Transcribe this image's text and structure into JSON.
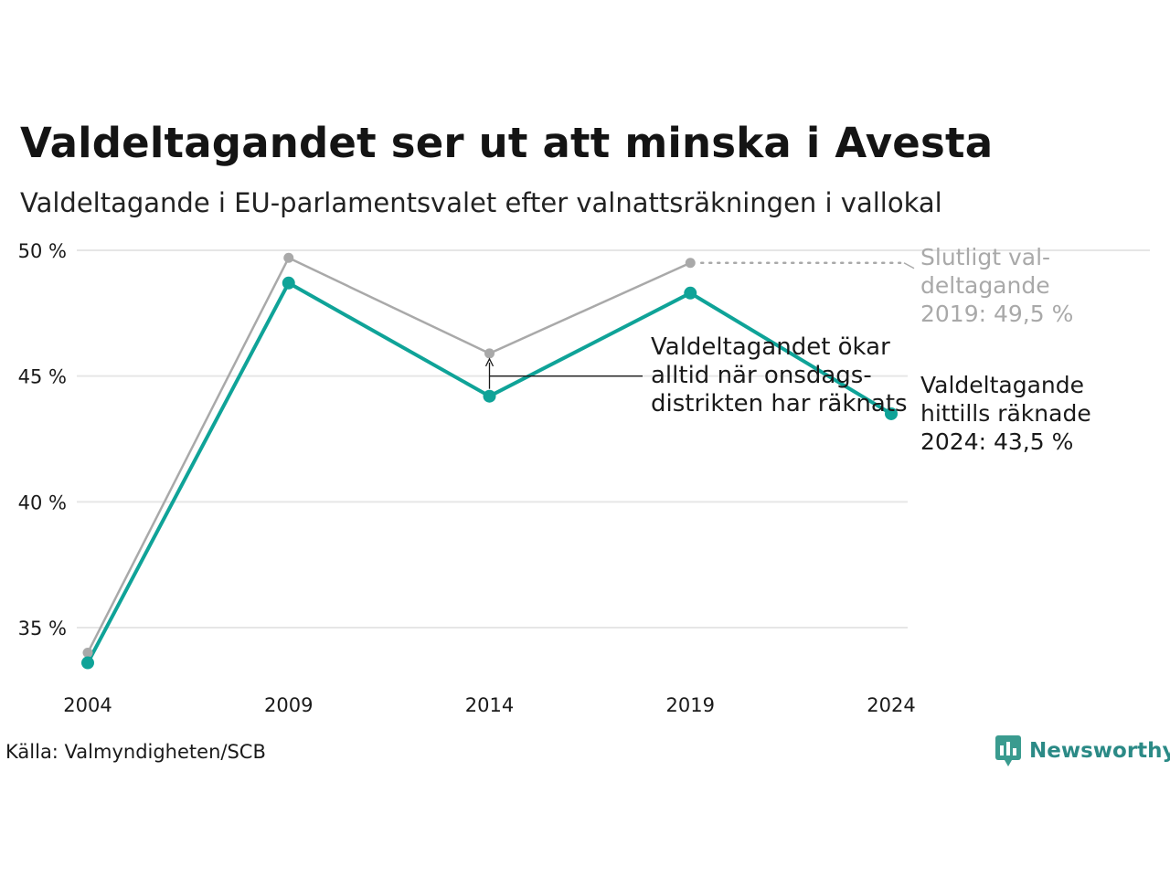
{
  "title": "Valdeltagandet ser ut att minska i Avesta",
  "subtitle": "Valdeltagande i EU-parlamentsvalet efter valnattsräkningen i vallokal",
  "source": "Källa: Valmyndigheten/SCB",
  "brand": "Newsworthy",
  "colors": {
    "preliminary": "#0fa398",
    "final": "#a9a9a9",
    "grid": "#e6e6e6",
    "brand": "#2b8a86"
  },
  "chart_data": {
    "type": "line",
    "x": [
      2004,
      2009,
      2014,
      2019,
      2024
    ],
    "ylim": [
      33,
      50.5
    ],
    "yticks": [
      35,
      40,
      45,
      50
    ],
    "ytick_labels": [
      "35 %",
      "40 %",
      "45 %",
      "50 %"
    ],
    "xtick_labels": [
      "2004",
      "2009",
      "2014",
      "2019",
      "2024"
    ],
    "grid": true,
    "series": [
      {
        "key": "final",
        "values": [
          34.0,
          49.7,
          45.9,
          49.5,
          null
        ]
      },
      {
        "key": "preliminary",
        "values": [
          33.6,
          48.7,
          44.2,
          48.3,
          43.5
        ]
      }
    ],
    "annotations": {
      "final_label": [
        "Slutligt val-",
        "deltagande",
        "2019: 49,5 %"
      ],
      "current_label": [
        "Valdeltagande",
        "hittills räknade",
        "2024: 43,5 %"
      ],
      "gap_note": [
        "Valdeltagandet ökar",
        "alltid när onsdags-",
        "distrikten har räknats"
      ]
    }
  }
}
